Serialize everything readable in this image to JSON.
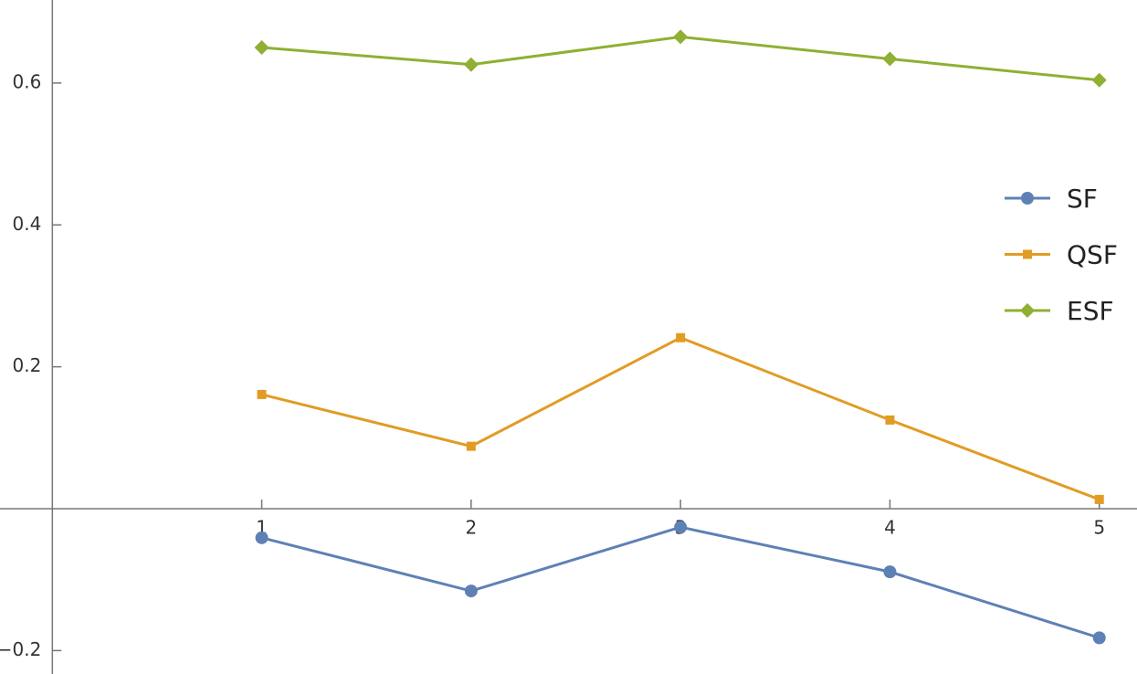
{
  "chart_data": {
    "type": "line",
    "x": [
      1,
      2,
      3,
      4,
      5
    ],
    "series": [
      {
        "name": "SF",
        "color": "#5e81b5",
        "marker": "circle",
        "values": [
          -0.041,
          -0.116,
          -0.026,
          -0.089,
          -0.182
        ]
      },
      {
        "name": "QSF",
        "color": "#e19c24",
        "marker": "square",
        "values": [
          0.161,
          0.088,
          0.241,
          0.125,
          0.013
        ]
      },
      {
        "name": "ESF",
        "color": "#8fb032",
        "marker": "diamond",
        "values": [
          0.65,
          0.626,
          0.665,
          0.634,
          0.604
        ]
      }
    ],
    "xlim": [
      -0.25,
      5.18
    ],
    "ylim": [
      -0.233,
      0.717
    ],
    "xticks": [
      1,
      2,
      3,
      4,
      5
    ],
    "yticks": [
      {
        "value": -0.2,
        "label": "−0.2"
      },
      0.2,
      0.4,
      0.6
    ],
    "legend": "right"
  }
}
